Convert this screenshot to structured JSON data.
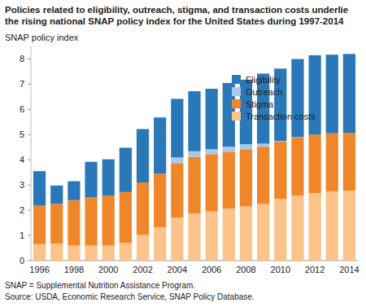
{
  "chart_data": {
    "type": "bar",
    "stacked": true,
    "title": "Policies related to eligibility, outreach, stigma, and transaction costs underlie the rising national SNAP policy index for the United States during 1997-2014",
    "y_label": "SNAP policy index",
    "footnotes": [
      "SNAP = Supplemental Nutrition Assistance Program.",
      "Source: USDA, Economic Research Service, SNAP Policy Database."
    ],
    "categories": [
      "1996",
      null,
      "1998",
      null,
      "2000",
      null,
      "2002",
      null,
      "2004",
      null,
      "2006",
      null,
      "2008",
      null,
      "2010",
      null,
      "2012",
      null,
      "2014"
    ],
    "series": [
      {
        "name": "Transaction costs",
        "color": "#fcc48a",
        "values": [
          0.65,
          0.68,
          0.6,
          0.6,
          0.6,
          0.7,
          1.02,
          1.33,
          1.7,
          1.87,
          1.95,
          2.07,
          2.15,
          2.25,
          2.45,
          2.58,
          2.68,
          2.75,
          2.78
        ]
      },
      {
        "name": "Stigma",
        "color": "#f0862a",
        "values": [
          1.53,
          1.57,
          1.8,
          1.92,
          1.98,
          2.02,
          2.08,
          2.12,
          2.17,
          2.25,
          2.27,
          2.25,
          2.27,
          2.27,
          2.27,
          2.3,
          2.32,
          2.3,
          2.29
        ]
      },
      {
        "name": "Outreach",
        "color": "#a9c9e8",
        "values": [
          0,
          0,
          0,
          0,
          0,
          0,
          0,
          0,
          0.22,
          0.22,
          0.2,
          0.2,
          0.2,
          0.12,
          0.03,
          0.02,
          0,
          0,
          0
        ]
      },
      {
        "name": "Eligibility",
        "color": "#2a78b8",
        "values": [
          1.37,
          0.73,
          0.75,
          1.4,
          1.44,
          1.76,
          2.12,
          2.23,
          2.33,
          2.38,
          2.4,
          2.53,
          2.56,
          2.78,
          2.87,
          3.1,
          3.15,
          3.12,
          3.13
        ]
      }
    ],
    "ylim": [
      0,
      8.5
    ],
    "yticks": [
      0,
      1,
      2,
      3,
      4,
      5,
      6,
      7,
      8
    ],
    "grid": false,
    "legend": "top-right"
  }
}
